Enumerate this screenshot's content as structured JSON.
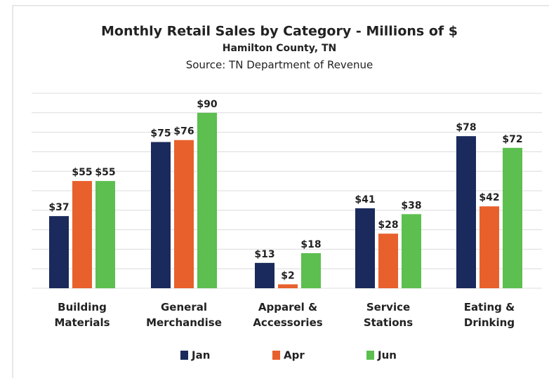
{
  "chart_data": {
    "type": "bar",
    "title": "Monthly Retail Sales by Category - Millions of $",
    "subtitle": "Hamilton County, TN",
    "source": "Source: TN Department of Revenue",
    "categories": [
      "Building Materials",
      "General Merchandise",
      "Apparel & Accessories",
      "Service Stations",
      "Eating & Drinking"
    ],
    "series": [
      {
        "name": "Jan",
        "color": "#1b2a5c",
        "values": [
          37,
          75,
          13,
          41,
          78
        ],
        "value_labels": [
          "$37",
          "$75",
          "$13",
          "$41",
          "$78"
        ]
      },
      {
        "name": "Apr",
        "color": "#e8602c",
        "values": [
          55,
          76,
          2,
          28,
          42
        ],
        "value_labels": [
          "$55",
          "$76",
          "$2",
          "$28",
          "$42"
        ]
      },
      {
        "name": "Jun",
        "color": "#5cbf4f",
        "values": [
          55,
          90,
          18,
          38,
          72
        ],
        "value_labels": [
          "$55",
          "$90",
          "$18",
          "$38",
          "$72"
        ]
      }
    ],
    "ylim": [
      0,
      100
    ],
    "yticks": [
      0,
      10,
      20,
      30,
      40,
      50,
      60,
      70,
      80,
      90,
      100
    ],
    "grid": true,
    "legend": "bottom"
  }
}
